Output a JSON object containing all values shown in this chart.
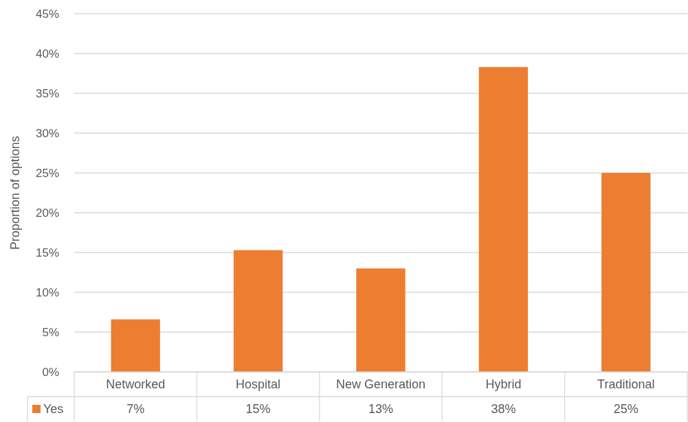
{
  "chart_data": {
    "type": "bar",
    "ylabel": "Proportion of options",
    "categories": [
      "Networked",
      "Hospital",
      "New Generation",
      "Hybrid",
      "Traditional"
    ],
    "series": [
      {
        "name": "Yes",
        "color": "#ed7d31",
        "values": [
          6.6,
          15.3,
          13,
          38.3,
          25
        ],
        "value_labels": [
          "7%",
          "15%",
          "13%",
          "38%",
          "25%"
        ]
      }
    ],
    "ylim": [
      0,
      45
    ],
    "yticks": [
      {
        "value": 0,
        "label": "0%"
      },
      {
        "value": 5,
        "label": "5%"
      },
      {
        "value": 10,
        "label": "10%"
      },
      {
        "value": 15,
        "label": "15%"
      },
      {
        "value": 20,
        "label": "20%"
      },
      {
        "value": 25,
        "label": "25%"
      },
      {
        "value": 30,
        "label": "30%"
      },
      {
        "value": 35,
        "label": "35%"
      },
      {
        "value": 40,
        "label": "40%"
      },
      {
        "value": 45,
        "label": "45%"
      }
    ],
    "grid": "y",
    "legend": "bottom"
  }
}
